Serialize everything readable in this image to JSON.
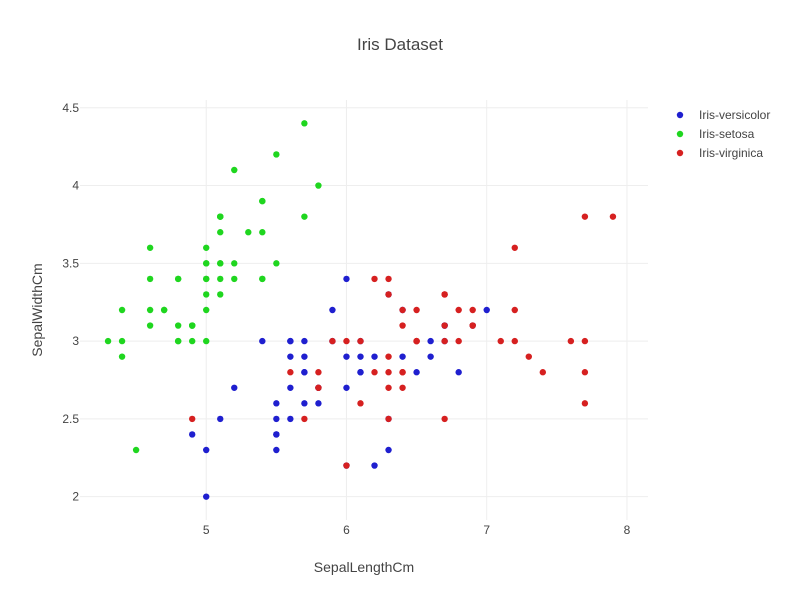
{
  "chart_data": {
    "type": "scatter",
    "title": "Iris Dataset",
    "xlabel": "SepalLengthCm",
    "ylabel": "SepalWidthCm",
    "xlim": [
      4.1,
      8.15
    ],
    "ylim": [
      1.85,
      4.55
    ],
    "x_ticks": [
      5,
      6,
      7,
      8
    ],
    "y_ticks": [
      2,
      2.5,
      3,
      3.5,
      4,
      4.5
    ],
    "x_tick_labels": [
      "5",
      "6",
      "7",
      "8"
    ],
    "y_tick_labels": [
      "2",
      "2.5",
      "3",
      "3.5",
      "4",
      "4.5"
    ],
    "grid": true,
    "legend_position": "top-right",
    "series": [
      {
        "name": "Iris-versicolor",
        "color": "#1f1fcf",
        "points": [
          [
            7.0,
            3.2
          ],
          [
            6.4,
            3.2
          ],
          [
            6.9,
            3.1
          ],
          [
            5.5,
            2.3
          ],
          [
            6.5,
            2.8
          ],
          [
            5.7,
            2.8
          ],
          [
            6.3,
            3.3
          ],
          [
            4.9,
            2.4
          ],
          [
            6.6,
            2.9
          ],
          [
            5.2,
            2.7
          ],
          [
            5.0,
            2.0
          ],
          [
            5.9,
            3.0
          ],
          [
            6.0,
            2.2
          ],
          [
            6.1,
            2.9
          ],
          [
            5.6,
            2.9
          ],
          [
            6.7,
            3.1
          ],
          [
            5.6,
            3.0
          ],
          [
            5.8,
            2.7
          ],
          [
            6.2,
            2.2
          ],
          [
            5.6,
            2.5
          ],
          [
            5.9,
            3.2
          ],
          [
            6.1,
            2.8
          ],
          [
            6.3,
            2.5
          ],
          [
            6.1,
            2.8
          ],
          [
            6.4,
            2.9
          ],
          [
            6.6,
            3.0
          ],
          [
            6.8,
            2.8
          ],
          [
            6.7,
            3.0
          ],
          [
            6.0,
            2.9
          ],
          [
            5.7,
            2.6
          ],
          [
            5.5,
            2.4
          ],
          [
            5.5,
            2.4
          ],
          [
            5.8,
            2.7
          ],
          [
            6.0,
            2.7
          ],
          [
            5.4,
            3.0
          ],
          [
            6.0,
            3.4
          ],
          [
            6.7,
            3.1
          ],
          [
            6.3,
            2.3
          ],
          [
            5.6,
            3.0
          ],
          [
            5.5,
            2.5
          ],
          [
            5.5,
            2.6
          ],
          [
            6.1,
            3.0
          ],
          [
            5.8,
            2.6
          ],
          [
            5.0,
            2.3
          ],
          [
            5.6,
            2.7
          ],
          [
            5.7,
            3.0
          ],
          [
            5.7,
            2.9
          ],
          [
            6.2,
            2.9
          ],
          [
            5.1,
            2.5
          ],
          [
            5.7,
            2.8
          ]
        ]
      },
      {
        "name": "Iris-setosa",
        "color": "#1fd61f",
        "points": [
          [
            5.1,
            3.5
          ],
          [
            4.9,
            3.0
          ],
          [
            4.7,
            3.2
          ],
          [
            4.6,
            3.1
          ],
          [
            5.0,
            3.6
          ],
          [
            5.4,
            3.9
          ],
          [
            4.6,
            3.4
          ],
          [
            5.0,
            3.4
          ],
          [
            4.4,
            2.9
          ],
          [
            4.9,
            3.1
          ],
          [
            5.4,
            3.7
          ],
          [
            4.8,
            3.4
          ],
          [
            4.8,
            3.0
          ],
          [
            4.3,
            3.0
          ],
          [
            5.8,
            4.0
          ],
          [
            5.7,
            4.4
          ],
          [
            5.4,
            3.9
          ],
          [
            5.1,
            3.5
          ],
          [
            5.7,
            3.8
          ],
          [
            5.1,
            3.8
          ],
          [
            5.4,
            3.4
          ],
          [
            5.1,
            3.7
          ],
          [
            4.6,
            3.6
          ],
          [
            5.1,
            3.3
          ],
          [
            4.8,
            3.4
          ],
          [
            5.0,
            3.0
          ],
          [
            5.0,
            3.4
          ],
          [
            5.2,
            3.5
          ],
          [
            5.2,
            3.4
          ],
          [
            4.7,
            3.2
          ],
          [
            4.8,
            3.1
          ],
          [
            5.4,
            3.4
          ],
          [
            5.2,
            4.1
          ],
          [
            5.5,
            4.2
          ],
          [
            4.9,
            3.1
          ],
          [
            5.0,
            3.2
          ],
          [
            5.5,
            3.5
          ],
          [
            4.9,
            3.1
          ],
          [
            4.4,
            3.0
          ],
          [
            5.1,
            3.4
          ],
          [
            5.0,
            3.5
          ],
          [
            4.5,
            2.3
          ],
          [
            4.4,
            3.2
          ],
          [
            5.0,
            3.5
          ],
          [
            5.1,
            3.8
          ],
          [
            4.8,
            3.0
          ],
          [
            5.1,
            3.8
          ],
          [
            4.6,
            3.2
          ],
          [
            5.3,
            3.7
          ],
          [
            5.0,
            3.3
          ]
        ]
      },
      {
        "name": "Iris-virginica",
        "color": "#d62020",
        "points": [
          [
            6.3,
            3.3
          ],
          [
            5.8,
            2.7
          ],
          [
            7.1,
            3.0
          ],
          [
            6.3,
            2.9
          ],
          [
            6.5,
            3.0
          ],
          [
            7.6,
            3.0
          ],
          [
            4.9,
            2.5
          ],
          [
            7.3,
            2.9
          ],
          [
            6.7,
            2.5
          ],
          [
            7.2,
            3.6
          ],
          [
            6.5,
            3.2
          ],
          [
            6.4,
            2.7
          ],
          [
            6.8,
            3.0
          ],
          [
            5.7,
            2.5
          ],
          [
            5.8,
            2.8
          ],
          [
            6.4,
            3.2
          ],
          [
            6.5,
            3.0
          ],
          [
            7.7,
            3.8
          ],
          [
            7.7,
            2.6
          ],
          [
            6.0,
            2.2
          ],
          [
            6.9,
            3.2
          ],
          [
            5.6,
            2.8
          ],
          [
            7.7,
            2.8
          ],
          [
            6.3,
            2.7
          ],
          [
            6.7,
            3.3
          ],
          [
            7.2,
            3.2
          ],
          [
            6.2,
            2.8
          ],
          [
            6.1,
            3.0
          ],
          [
            6.4,
            2.8
          ],
          [
            7.2,
            3.0
          ],
          [
            7.4,
            2.8
          ],
          [
            7.9,
            3.8
          ],
          [
            6.4,
            2.8
          ],
          [
            6.3,
            2.8
          ],
          [
            6.1,
            2.6
          ],
          [
            7.7,
            3.0
          ],
          [
            6.3,
            3.4
          ],
          [
            6.4,
            3.1
          ],
          [
            6.0,
            3.0
          ],
          [
            6.9,
            3.1
          ],
          [
            6.7,
            3.1
          ],
          [
            6.9,
            3.1
          ],
          [
            5.8,
            2.7
          ],
          [
            6.8,
            3.2
          ],
          [
            6.7,
            3.3
          ],
          [
            6.7,
            3.0
          ],
          [
            6.3,
            2.5
          ],
          [
            6.5,
            3.0
          ],
          [
            6.2,
            3.4
          ],
          [
            5.9,
            3.0
          ]
        ]
      }
    ]
  }
}
